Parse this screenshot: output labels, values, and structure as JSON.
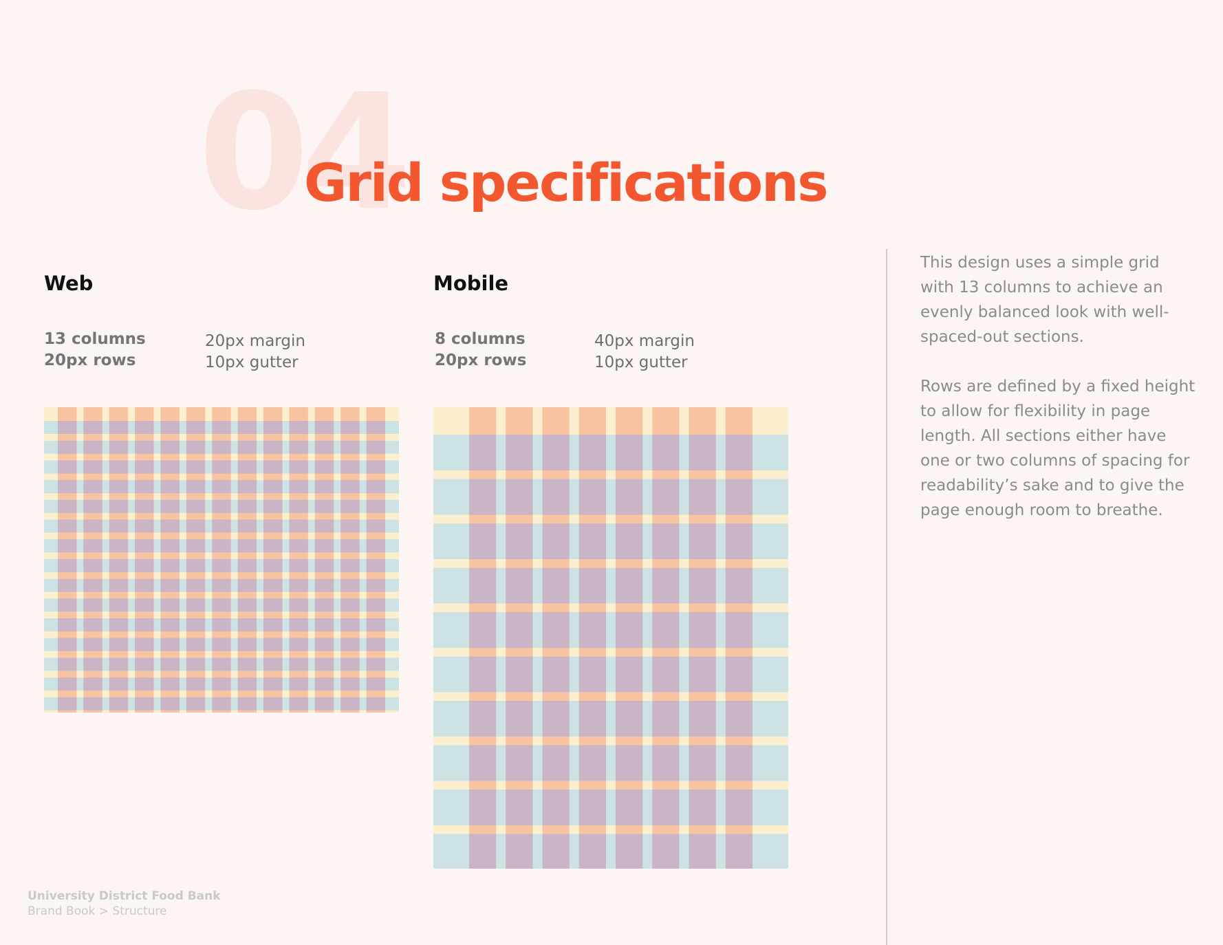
{
  "page": {
    "section_number": "04",
    "title": "Grid specifications"
  },
  "web": {
    "heading": "Web",
    "columns": "13 columns",
    "rows": "20px rows",
    "margin": "20px margin",
    "gutter": "10px gutter",
    "column_count": 13,
    "row_band_count": 15
  },
  "mobile": {
    "heading": "Mobile",
    "columns": "8 columns",
    "rows": "20px rows",
    "margin": "40px margin",
    "gutter": "10px gutter",
    "column_count": 8,
    "row_band_count": 10
  },
  "description": {
    "paragraph_1": "This design uses a simple grid with 13 columns to achieve an evenly balanced look with well-spaced-out sections.",
    "paragraph_2": "Rows are defined by a fixed height to allow for flexibility in page length. All sections either have one or two columns of spacing for readability’s sake and to give the page enough room to breathe."
  },
  "footer": {
    "organization": "University District Food Bank",
    "breadcrumb": "Brand Book > Structure"
  },
  "colors": {
    "accent": "#f2572f",
    "background": "#fcf5f3",
    "grid_base": "#fcefd0",
    "grid_row": "#cde2e3",
    "grid_column": "#f7c3a0",
    "grid_overlap": "#c9b5c6"
  }
}
